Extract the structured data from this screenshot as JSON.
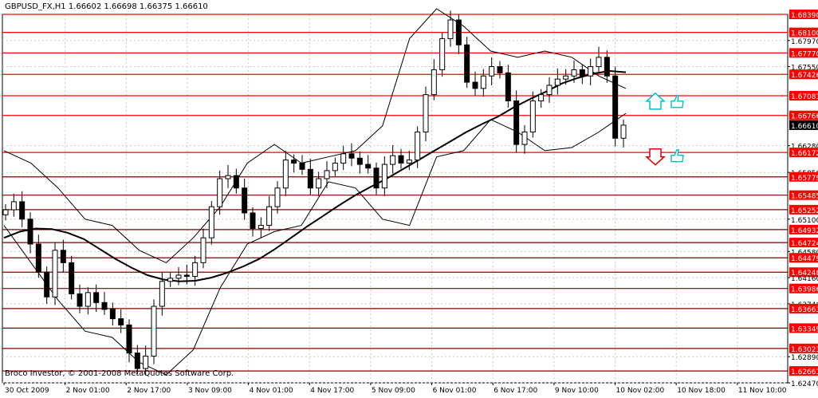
{
  "title": "GBPUSD_FX,H1  1.66602 1.66698 1.66375 1.66610",
  "copyright": "Broco Investor, © 2001-2008 MetaQuotes Software Corp.",
  "chart_data": {
    "type": "candlestick",
    "symbol": "GBPUSD_FX",
    "timeframe": "H1",
    "ohlc_last": {
      "open": 1.66602,
      "high": 1.66698,
      "low": 1.66375,
      "close": 1.6661
    },
    "current_price": "1.66610",
    "ylim": [
      1.6247,
      1.6839
    ],
    "x_labels": [
      "30 Oct 2009",
      "2 Nov 01:00",
      "2 Nov 17:00",
      "3 Nov 09:00",
      "4 Nov 01:00",
      "4 Nov 17:00",
      "5 Nov 09:00",
      "6 Nov 01:00",
      "6 Nov 17:00",
      "9 Nov 10:00",
      "10 Nov 02:00",
      "10 Nov 18:00",
      "11 Nov 10:00"
    ],
    "y_ticks": [
      {
        "value": 1.6839,
        "label": "1.68390",
        "red": true
      },
      {
        "value": 1.681,
        "label": "1.68100",
        "red": true
      },
      {
        "value": 1.6797,
        "label": "1.67970",
        "red": false
      },
      {
        "value": 1.6777,
        "label": "1.67770",
        "red": true
      },
      {
        "value": 1.6755,
        "label": "1.67550",
        "red": false
      },
      {
        "value": 1.67426,
        "label": "1.67426",
        "red": true
      },
      {
        "value": 1.67083,
        "label": "1.67083",
        "red": true
      },
      {
        "value": 1.66766,
        "label": "1.66766",
        "red": true
      },
      {
        "value": 1.6628,
        "label": "1.66280",
        "red": false
      },
      {
        "value": 1.66172,
        "label": "1.66172",
        "red": true
      },
      {
        "value": 1.6585,
        "label": "1.65850",
        "red": false
      },
      {
        "value": 1.65779,
        "label": "1.65779",
        "red": true
      },
      {
        "value": 1.65485,
        "label": "1.65485",
        "red": true
      },
      {
        "value": 1.65252,
        "label": "1.65252",
        "red": true
      },
      {
        "value": 1.651,
        "label": "1.65100",
        "red": false
      },
      {
        "value": 1.64932,
        "label": "1.64932",
        "red": true
      },
      {
        "value": 1.64724,
        "label": "1.64724",
        "red": true
      },
      {
        "value": 1.6458,
        "label": "1.64580",
        "red": false
      },
      {
        "value": 1.64479,
        "label": "1.64479",
        "red": true
      },
      {
        "value": 1.64248,
        "label": "1.64248",
        "red": true
      },
      {
        "value": 1.6416,
        "label": "1.64160",
        "red": false
      },
      {
        "value": 1.63986,
        "label": "1.63986",
        "red": true
      },
      {
        "value": 1.6374,
        "label": "1.63740",
        "red": false
      },
      {
        "value": 1.63663,
        "label": "1.63663",
        "red": true
      },
      {
        "value": 1.63349,
        "label": "1.63349",
        "red": true
      },
      {
        "value": 1.63023,
        "label": "1.63023",
        "red": true
      },
      {
        "value": 1.6289,
        "label": "1.62890",
        "red": false
      },
      {
        "value": 1.62661,
        "label": "1.62661",
        "red": true
      },
      {
        "value": 1.6247,
        "label": "1.62470",
        "red": false
      }
    ],
    "horizontal_levels": [
      1.6839,
      1.681,
      1.6777,
      1.67426,
      1.67083,
      1.66766,
      1.66172,
      1.65779,
      1.65485,
      1.65252,
      1.64932,
      1.64724,
      1.64479,
      1.64248,
      1.63986,
      1.63663,
      1.63349,
      1.63023,
      1.62661
    ],
    "grid": true,
    "close_series": [
      1.6525,
      1.6538,
      1.651,
      1.647,
      1.6425,
      1.6385,
      1.646,
      1.644,
      1.639,
      1.637,
      1.6392,
      1.6376,
      1.6365,
      1.635,
      1.634,
      1.6295,
      1.627,
      1.629,
      1.637,
      1.641,
      1.6415,
      1.642,
      1.6418,
      1.644,
      1.648,
      1.653,
      1.6575,
      1.658,
      1.656,
      1.652,
      1.6495,
      1.65,
      1.653,
      1.656,
      1.6605,
      1.66,
      1.659,
      1.656,
      1.6575,
      1.6588,
      1.66,
      1.6615,
      1.6608,
      1.6598,
      1.6592,
      1.656,
      1.6598,
      1.6612,
      1.66,
      1.6605,
      1.665,
      1.671,
      1.675,
      1.68,
      1.683,
      1.679,
      1.673,
      1.672,
      1.674,
      1.6755,
      1.6745,
      1.67,
      1.663,
      1.665,
      1.67,
      1.671,
      1.6725,
      1.6735,
      1.674,
      1.675,
      1.674,
      1.6755,
      1.677,
      1.674,
      1.664,
      1.6661
    ],
    "series": [
      {
        "name": "Moving Average",
        "values": [
          1.648,
          1.649,
          1.6495,
          1.6494,
          1.6488,
          1.6478,
          1.6462,
          1.6446,
          1.6432,
          1.642,
          1.6413,
          1.641,
          1.6411,
          1.6416,
          1.6424,
          1.6434,
          1.6446,
          1.6462,
          1.648,
          1.6498,
          1.6515,
          1.6532,
          1.6548,
          1.6562,
          1.6575,
          1.659,
          1.6605,
          1.662,
          1.6635,
          1.665,
          1.6663,
          1.6675,
          1.669,
          1.6703,
          1.6715,
          1.6728,
          1.6737,
          1.6744,
          1.6748,
          1.6746
        ]
      },
      {
        "name": "Bollinger Upper",
        "values": [
          1.662,
          1.66,
          1.656,
          1.651,
          1.65,
          1.646,
          1.644,
          1.648,
          1.653,
          1.66,
          1.663,
          1.66,
          1.661,
          1.662,
          1.666,
          1.68,
          1.6848,
          1.682,
          1.678,
          1.677,
          1.678,
          1.677,
          1.674,
          1.672
        ]
      },
      {
        "name": "Bollinger Lower",
        "values": [
          1.65,
          1.644,
          1.638,
          1.633,
          1.632,
          1.628,
          1.626,
          1.63,
          1.64,
          1.647,
          1.649,
          1.65,
          1.657,
          1.656,
          1.651,
          1.65,
          1.661,
          1.662,
          1.667,
          1.665,
          1.662,
          1.6625,
          1.665,
          1.668
        ]
      }
    ],
    "markers": [
      {
        "type": "arrow-up",
        "color": "#00c0c0",
        "price": 1.6697
      },
      {
        "type": "arrow-down",
        "color": "#e00000",
        "price": 1.661
      },
      {
        "type": "thumbs-up",
        "color": "#00c0c0",
        "price": 1.6697
      },
      {
        "type": "thumbs-up",
        "color": "#00c0c0",
        "price": 1.661
      }
    ],
    "colors": {
      "levels": "#ff0000",
      "dark_levels": "#800000",
      "candles": "#000000",
      "moving_average": "#000000",
      "label_bg": "#ff0000",
      "current_bg": "#000000",
      "label_text": "#ffffff",
      "arrow_up": "#00c0c0",
      "arrow_down": "#e00000"
    }
  }
}
